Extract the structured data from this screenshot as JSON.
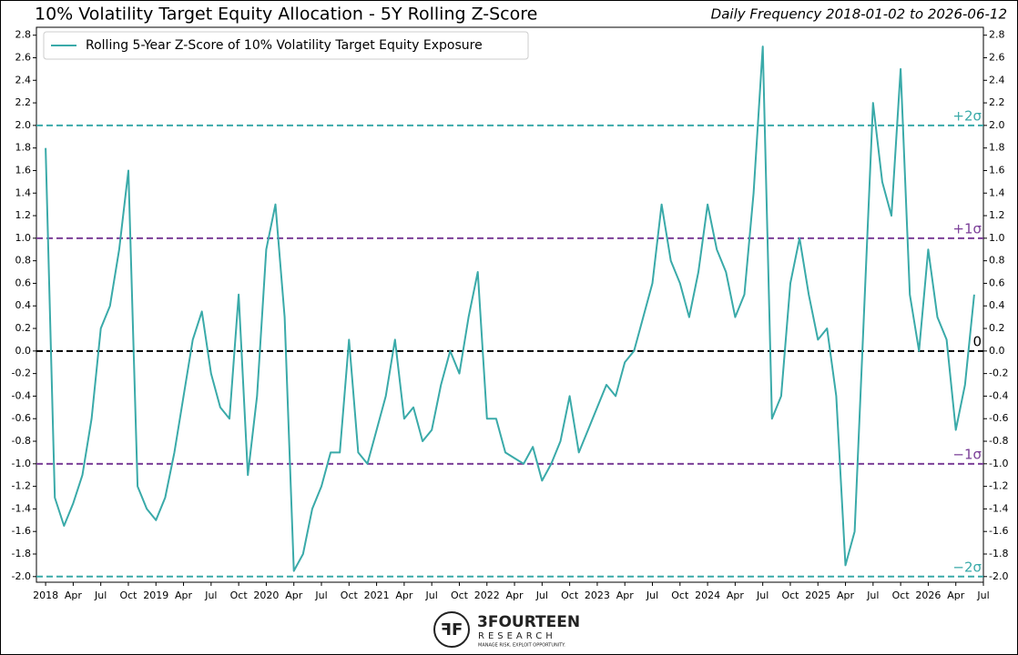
{
  "chart_data": {
    "type": "line",
    "title": "10% Volatility Target Equity Allocation - 5Y Rolling Z-Score",
    "subtitle": "Daily Frequency 2018-01-02 to 2026-06-12",
    "x": [
      "2018-01",
      "2018-02",
      "2018-03",
      "2018-04",
      "2018-05",
      "2018-06",
      "2018-07",
      "2018-08",
      "2018-09",
      "2018-10",
      "2018-11",
      "2018-12",
      "2019-01",
      "2019-02",
      "2019-03",
      "2019-04",
      "2019-05",
      "2019-06",
      "2019-07",
      "2019-08",
      "2019-09",
      "2019-10",
      "2019-11",
      "2019-12",
      "2020-01",
      "2020-02",
      "2020-03",
      "2020-04",
      "2020-05",
      "2020-06",
      "2020-07",
      "2020-08",
      "2020-09",
      "2020-10",
      "2020-11",
      "2020-12",
      "2021-01",
      "2021-02",
      "2021-03",
      "2021-04",
      "2021-05",
      "2021-06",
      "2021-07",
      "2021-08",
      "2021-09",
      "2021-10",
      "2021-11",
      "2021-12",
      "2022-01",
      "2022-02",
      "2022-03",
      "2022-04",
      "2022-05",
      "2022-06",
      "2022-07",
      "2022-08",
      "2022-09",
      "2022-10",
      "2022-11",
      "2022-12",
      "2023-01",
      "2023-02",
      "2023-03",
      "2023-04",
      "2023-05",
      "2023-06",
      "2023-07",
      "2023-08",
      "2023-09",
      "2023-10",
      "2023-11",
      "2023-12",
      "2024-01",
      "2024-02",
      "2024-03",
      "2024-04",
      "2024-05",
      "2024-06",
      "2024-07",
      "2024-08",
      "2024-09",
      "2024-10",
      "2024-11",
      "2024-12",
      "2025-01",
      "2025-02",
      "2025-03",
      "2025-04",
      "2025-05",
      "2025-06",
      "2025-07",
      "2025-08",
      "2025-09",
      "2025-10",
      "2025-11",
      "2025-12",
      "2026-01",
      "2026-02",
      "2026-03",
      "2026-04",
      "2026-05",
      "2026-06"
    ],
    "series": [
      {
        "name": "Rolling 5-Year Z-Score of 10% Volatility Target Equity Exposure",
        "color": "#3aaaa9",
        "values": [
          1.8,
          -1.3,
          -1.55,
          -1.35,
          -1.1,
          -0.6,
          0.2,
          0.4,
          0.9,
          1.6,
          -1.2,
          -1.4,
          -1.5,
          -1.3,
          -0.9,
          -0.4,
          0.1,
          0.35,
          -0.2,
          -0.5,
          -0.6,
          0.5,
          -1.1,
          -0.4,
          0.9,
          1.3,
          0.3,
          -1.95,
          -1.8,
          -1.4,
          -1.2,
          -0.9,
          -0.9,
          0.1,
          -0.9,
          -1.0,
          -0.7,
          -0.4,
          0.1,
          -0.6,
          -0.5,
          -0.8,
          -0.7,
          -0.3,
          0.0,
          -0.2,
          0.3,
          0.7,
          -0.6,
          -0.6,
          -0.9,
          -0.95,
          -1.0,
          -0.85,
          -1.15,
          -1.0,
          -0.8,
          -0.4,
          -0.9,
          -0.7,
          -0.5,
          -0.3,
          -0.4,
          -0.1,
          0.0,
          0.3,
          0.6,
          1.3,
          0.8,
          0.6,
          0.3,
          0.7,
          1.3,
          0.9,
          0.7,
          0.3,
          0.5,
          1.4,
          2.7,
          -0.6,
          -0.4,
          0.6,
          1.0,
          0.5,
          0.1,
          0.2,
          -0.4,
          -1.9,
          -1.6,
          0.3,
          2.2,
          1.5,
          1.2,
          2.5,
          0.5,
          0.0,
          0.9,
          0.3,
          0.1,
          -0.7,
          -0.3,
          0.5
        ]
      }
    ],
    "xlim": [
      "2017-12",
      "2026-07"
    ],
    "xticks": [
      {
        "value": "2018-01",
        "label": "2018"
      },
      {
        "value": "2018-04",
        "label": "Apr"
      },
      {
        "value": "2018-07",
        "label": "Jul"
      },
      {
        "value": "2018-10",
        "label": "Oct"
      },
      {
        "value": "2019-01",
        "label": "2019"
      },
      {
        "value": "2019-04",
        "label": "Apr"
      },
      {
        "value": "2019-07",
        "label": "Jul"
      },
      {
        "value": "2019-10",
        "label": "Oct"
      },
      {
        "value": "2020-01",
        "label": "2020"
      },
      {
        "value": "2020-04",
        "label": "Apr"
      },
      {
        "value": "2020-07",
        "label": "Jul"
      },
      {
        "value": "2020-10",
        "label": "Oct"
      },
      {
        "value": "2021-01",
        "label": "2021"
      },
      {
        "value": "2021-04",
        "label": "Apr"
      },
      {
        "value": "2021-07",
        "label": "Jul"
      },
      {
        "value": "2021-10",
        "label": "Oct"
      },
      {
        "value": "2022-01",
        "label": "2022"
      },
      {
        "value": "2022-04",
        "label": "Apr"
      },
      {
        "value": "2022-07",
        "label": "Jul"
      },
      {
        "value": "2022-10",
        "label": "Oct"
      },
      {
        "value": "2023-01",
        "label": "2023"
      },
      {
        "value": "2023-04",
        "label": "Apr"
      },
      {
        "value": "2023-07",
        "label": "Jul"
      },
      {
        "value": "2023-10",
        "label": "Oct"
      },
      {
        "value": "2024-01",
        "label": "2024"
      },
      {
        "value": "2024-04",
        "label": "Apr"
      },
      {
        "value": "2024-07",
        "label": "Jul"
      },
      {
        "value": "2024-10",
        "label": "Oct"
      },
      {
        "value": "2025-01",
        "label": "2025"
      },
      {
        "value": "2025-04",
        "label": "Apr"
      },
      {
        "value": "2025-07",
        "label": "Jul"
      },
      {
        "value": "2025-10",
        "label": "Oct"
      },
      {
        "value": "2026-01",
        "label": "2026"
      },
      {
        "value": "2026-04",
        "label": "Apr"
      },
      {
        "value": "2026-07",
        "label": "Jul"
      }
    ],
    "ylim": [
      -2.05,
      2.87
    ],
    "yticks": [
      {
        "value": -2.0,
        "label": "-2.0"
      },
      {
        "value": -1.8,
        "label": "-1.8"
      },
      {
        "value": -1.6,
        "label": "-1.6"
      },
      {
        "value": -1.4,
        "label": "-1.4"
      },
      {
        "value": -1.2,
        "label": "-1.2"
      },
      {
        "value": -1.0,
        "label": "-1.0"
      },
      {
        "value": -0.8,
        "label": "-0.8"
      },
      {
        "value": -0.6,
        "label": "-0.6"
      },
      {
        "value": -0.4,
        "label": "-0.4"
      },
      {
        "value": -0.2,
        "label": "-0.2"
      },
      {
        "value": 0,
        "label": "0.0"
      },
      {
        "value": 0.2,
        "label": "0.2"
      },
      {
        "value": 0.4,
        "label": "0.4"
      },
      {
        "value": 0.6,
        "label": "0.6"
      },
      {
        "value": 0.8,
        "label": "0.8"
      },
      {
        "value": 1.0,
        "label": "1.0"
      },
      {
        "value": 1.2,
        "label": "1.2"
      },
      {
        "value": 1.4,
        "label": "1.4"
      },
      {
        "value": 1.6,
        "label": "1.6"
      },
      {
        "value": 1.8,
        "label": "1.8"
      },
      {
        "value": 2.0,
        "label": "2.0"
      },
      {
        "value": 2.2,
        "label": "2.2"
      },
      {
        "value": 2.4,
        "label": "2.4"
      },
      {
        "value": 2.6,
        "label": "2.6"
      },
      {
        "value": 2.8,
        "label": "2.8"
      }
    ],
    "hlines": [
      {
        "value": 2,
        "label": "+2σ",
        "color": "#3aaaa9"
      },
      {
        "value": 1,
        "label": "+1σ",
        "color": "#7b3f98"
      },
      {
        "value": 0,
        "label": "0",
        "color": "#000000"
      },
      {
        "value": -1,
        "label": "−1σ",
        "color": "#7b3f98"
      },
      {
        "value": -2,
        "label": "−2σ",
        "color": "#3aaaa9"
      }
    ],
    "legend": "upper left",
    "logo": {
      "name": "3FOURTEEN",
      "sub": "RESEARCH",
      "tagline": "MANAGE RISK. EXPLOIT OPPORTUNITY."
    }
  }
}
